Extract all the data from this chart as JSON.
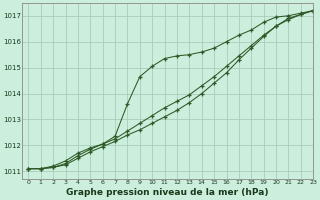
{
  "xlabel": "Graphe pression niveau de la mer (hPa)",
  "bg_color": "#cceedd",
  "grid_color": "#aaccbb",
  "line_color": "#2d5a27",
  "ylim": [
    1010.7,
    1017.5
  ],
  "xlim": [
    -0.5,
    23
  ],
  "yticks": [
    1011,
    1012,
    1013,
    1014,
    1015,
    1016,
    1017
  ],
  "xticks": [
    0,
    1,
    2,
    3,
    4,
    5,
    6,
    7,
    8,
    9,
    10,
    11,
    12,
    13,
    14,
    15,
    16,
    17,
    18,
    19,
    20,
    21,
    22,
    23
  ],
  "series1": [
    1011.1,
    1011.1,
    1011.15,
    1011.3,
    1011.6,
    1011.85,
    1012.05,
    1012.35,
    1013.6,
    1014.65,
    1015.05,
    1015.35,
    1015.45,
    1015.5,
    1015.6,
    1015.75,
    1016.0,
    1016.25,
    1016.45,
    1016.75,
    1016.95,
    1017.0,
    1017.1,
    1017.2
  ],
  "series2": [
    1011.1,
    1011.1,
    1011.15,
    1011.25,
    1011.5,
    1011.75,
    1011.95,
    1012.15,
    1012.4,
    1012.6,
    1012.85,
    1013.1,
    1013.35,
    1013.65,
    1014.0,
    1014.4,
    1014.8,
    1015.3,
    1015.75,
    1016.2,
    1016.6,
    1016.9,
    1017.05,
    1017.2
  ],
  "series3": [
    1011.1,
    1011.1,
    1011.2,
    1011.4,
    1011.7,
    1011.9,
    1012.05,
    1012.25,
    1012.55,
    1012.85,
    1013.15,
    1013.45,
    1013.7,
    1013.95,
    1014.3,
    1014.65,
    1015.05,
    1015.45,
    1015.85,
    1016.25,
    1016.6,
    1016.85,
    1017.05,
    1017.2
  ]
}
